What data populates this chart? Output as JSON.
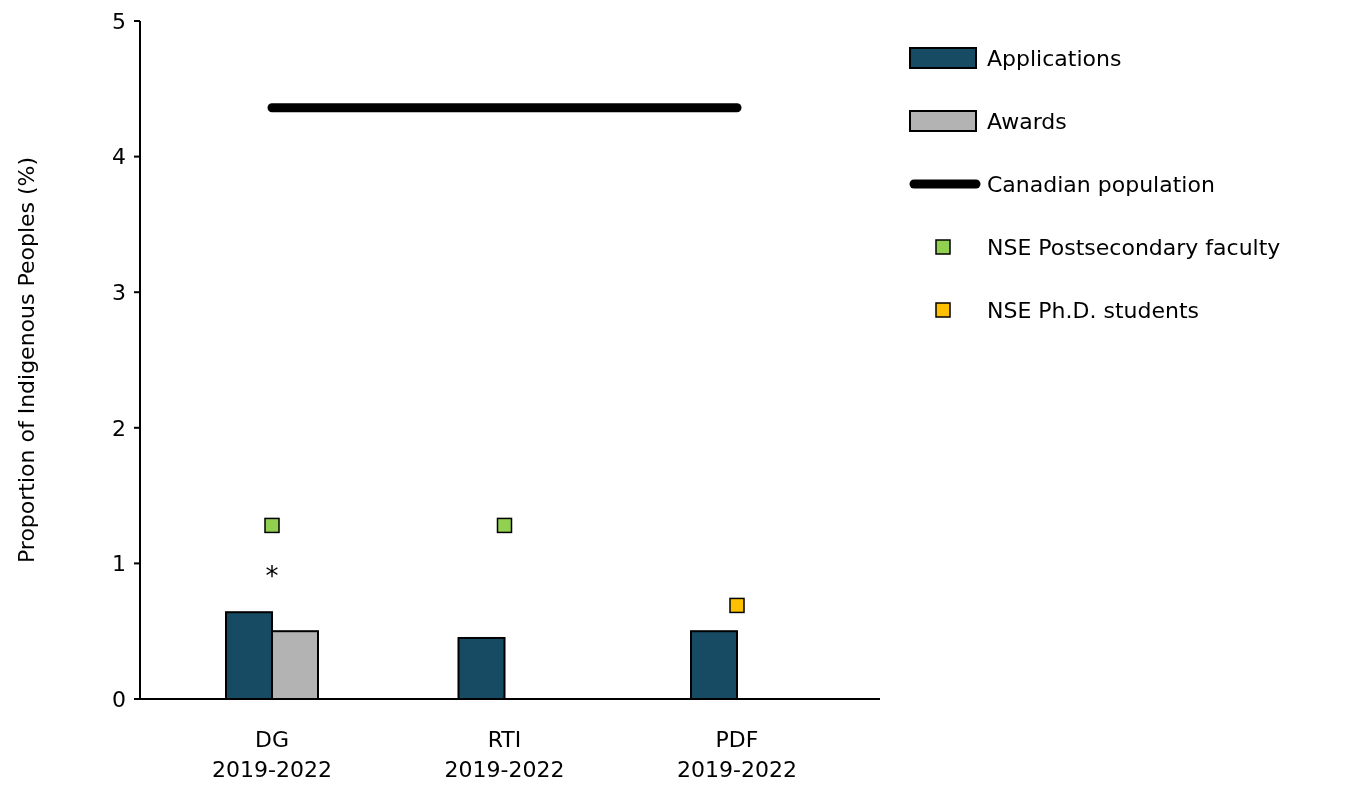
{
  "chart_data": {
    "type": "bar",
    "ylabel": "Proportion of Indigenous Peoples (%)",
    "categories": [
      "DG\n2019-2022",
      "RTI\n2019-2022",
      "PDF\n2019-2022"
    ],
    "series": [
      {
        "name": "Applications",
        "color": "#174a63",
        "values": [
          0.64,
          0.45,
          0.5
        ]
      },
      {
        "name": "Awards",
        "color": "#b3b3b3",
        "values": [
          0.5,
          null,
          null
        ]
      },
      {
        "name": "Canadian population",
        "type": "line",
        "color": "#000000",
        "values": [
          4.36,
          4.36,
          4.36
        ]
      },
      {
        "name": "NSE Postsecondary faculty",
        "type": "scatter",
        "marker": "square",
        "color": "#92d050",
        "values": [
          1.28,
          1.28,
          null
        ]
      },
      {
        "name": "NSE Ph.D. students",
        "type": "scatter",
        "marker": "square",
        "color": "#ffc000",
        "values": [
          null,
          null,
          0.69
        ]
      }
    ],
    "ylim": [
      0,
      5
    ],
    "yticks": [
      0,
      1,
      2,
      3,
      4,
      5
    ],
    "grid": false,
    "legend": "right",
    "annotations": [
      "*"
    ]
  }
}
